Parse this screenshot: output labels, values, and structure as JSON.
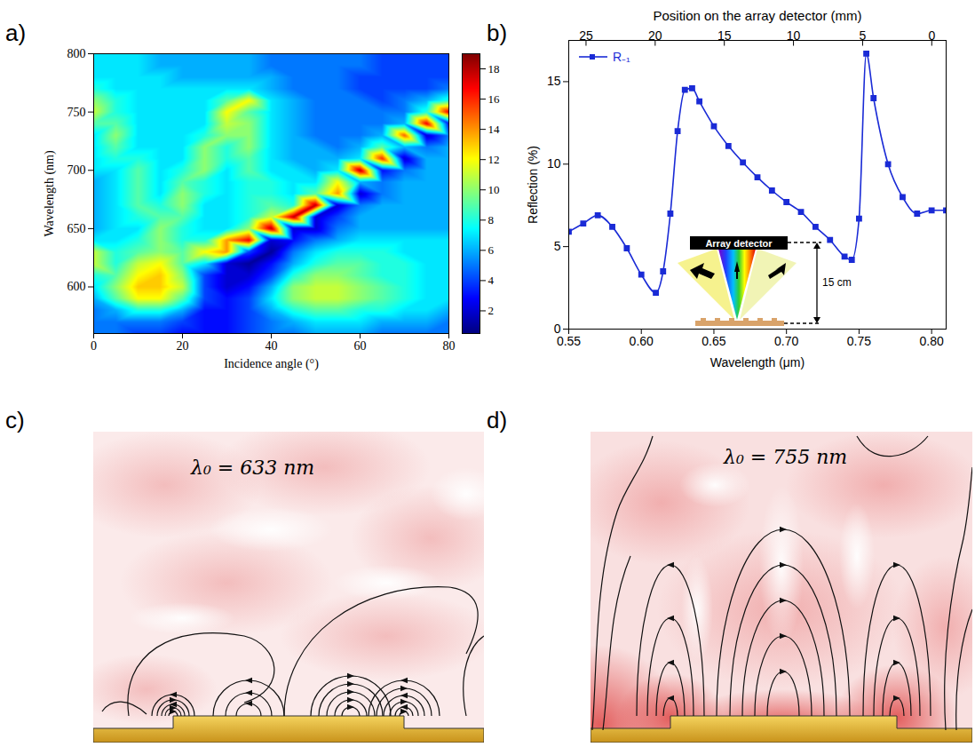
{
  "chart_data": [
    {
      "panel": "a)",
      "type": "heatmap",
      "xlabel": "Incidence angle (°)",
      "ylabel": "Wavelength (nm)",
      "xlim": [
        0,
        80
      ],
      "ylim": [
        560,
        800
      ],
      "xticks": [
        0,
        20,
        40,
        60,
        80
      ],
      "yticks": [
        600,
        650,
        700,
        750,
        800
      ],
      "x": [
        0,
        5,
        10,
        15,
        20,
        25,
        30,
        35,
        40,
        45,
        50,
        55,
        60,
        65,
        70,
        75,
        80
      ],
      "y": [
        560,
        570,
        580,
        590,
        600,
        610,
        620,
        630,
        640,
        650,
        660,
        670,
        680,
        690,
        700,
        710,
        720,
        730,
        740,
        750,
        760,
        770,
        780,
        790,
        800
      ],
      "values": [
        [
          5,
          5,
          4,
          4,
          3,
          3,
          3,
          4,
          5,
          5,
          6,
          6,
          6,
          5,
          5,
          5,
          5
        ],
        [
          5,
          5,
          5,
          5,
          4,
          3,
          3,
          4,
          5,
          6,
          7,
          7,
          7,
          6,
          6,
          6,
          5
        ],
        [
          5,
          6,
          8,
          8,
          6,
          3,
          3,
          4,
          6,
          8,
          9,
          9,
          8,
          8,
          7,
          7,
          6
        ],
        [
          6,
          9,
          12,
          12,
          9,
          4,
          3,
          4,
          7,
          10,
          11,
          11,
          10,
          9,
          8,
          7,
          7
        ],
        [
          7,
          10,
          13,
          13,
          11,
          4,
          2,
          3,
          6,
          10,
          11,
          11,
          10,
          9,
          8,
          7,
          7
        ],
        [
          8,
          9,
          12,
          13,
          10,
          4,
          2,
          2,
          4,
          8,
          10,
          10,
          9,
          8,
          8,
          7,
          7
        ],
        [
          11,
          8,
          11,
          12,
          9,
          7,
          2,
          1,
          3,
          6,
          8,
          9,
          9,
          8,
          8,
          7,
          7
        ],
        [
          11,
          8,
          9,
          10,
          9,
          12,
          14,
          4,
          1,
          5,
          7,
          8,
          8,
          8,
          7,
          7,
          7
        ],
        [
          7,
          7,
          8,
          10,
          8,
          8,
          14,
          17,
          2,
          3,
          5,
          6,
          7,
          7,
          7,
          7,
          7
        ],
        [
          6,
          7,
          7,
          10,
          8,
          7,
          7,
          10,
          18,
          2,
          2,
          5,
          6,
          6,
          6,
          6,
          6
        ],
        [
          6,
          7,
          8,
          9,
          9,
          7,
          7,
          8,
          11,
          18,
          2,
          4,
          6,
          6,
          6,
          6,
          6
        ],
        [
          6,
          7,
          9,
          8,
          10,
          7,
          7,
          8,
          9,
          8,
          18,
          2,
          5,
          6,
          6,
          6,
          6
        ],
        [
          6,
          7,
          9,
          7,
          10,
          8,
          7,
          8,
          8,
          7,
          9,
          14,
          2,
          5,
          6,
          6,
          6
        ],
        [
          6,
          7,
          9,
          7,
          9,
          8,
          7,
          8,
          8,
          7,
          7,
          12,
          6,
          5,
          6,
          6,
          6
        ],
        [
          7,
          7,
          9,
          7,
          8,
          10,
          7,
          9,
          7,
          7,
          6,
          7,
          18,
          3,
          5,
          6,
          6
        ],
        [
          7,
          8,
          8,
          7,
          7,
          10,
          8,
          9,
          7,
          6,
          6,
          6,
          7,
          16,
          2,
          6,
          6
        ],
        [
          7,
          9,
          7,
          7,
          7,
          10,
          8,
          10,
          7,
          6,
          6,
          5,
          6,
          9,
          6,
          5,
          6
        ],
        [
          7,
          10,
          7,
          7,
          7,
          8,
          10,
          10,
          7,
          6,
          5,
          5,
          5,
          6,
          15,
          2,
          5
        ],
        [
          9,
          9,
          7,
          7,
          7,
          7,
          11,
          10,
          7,
          6,
          5,
          5,
          5,
          5,
          6,
          17,
          3
        ],
        [
          11,
          8,
          7,
          7,
          7,
          7,
          12,
          9,
          7,
          6,
          5,
          5,
          5,
          5,
          5,
          8,
          17
        ],
        [
          10,
          8,
          7,
          7,
          7,
          7,
          9,
          12,
          7,
          6,
          5,
          5,
          5,
          4,
          5,
          6,
          8
        ],
        [
          8,
          7,
          7,
          7,
          7,
          7,
          7,
          7,
          6,
          5,
          5,
          5,
          4,
          4,
          4,
          4,
          5
        ],
        [
          7,
          7,
          7,
          7,
          6,
          6,
          6,
          6,
          6,
          5,
          5,
          5,
          4,
          4,
          4,
          4,
          4
        ],
        [
          7,
          7,
          7,
          6,
          6,
          6,
          6,
          6,
          5,
          5,
          5,
          5,
          5,
          4,
          4,
          4,
          4
        ],
        [
          7,
          7,
          7,
          6,
          6,
          6,
          6,
          6,
          5,
          5,
          5,
          5,
          5,
          4,
          4,
          4,
          4
        ]
      ],
      "colorbar": {
        "range": [
          0.5,
          19
        ],
        "ticks": [
          2,
          4,
          6,
          8,
          10,
          12,
          14,
          16,
          18
        ]
      }
    },
    {
      "panel": "b)",
      "type": "line",
      "xlabel": "Wavelength (μm)",
      "ylabel": "Reflection (%)",
      "x2label": "Position on the array detector (mm)",
      "xlim": [
        0.55,
        0.81
      ],
      "ylim": [
        0,
        17.5
      ],
      "xticks": [
        {
          "value": 0.55,
          "label": "0.55"
        },
        {
          "value": 0.6,
          "label": "0.60"
        },
        {
          "value": 0.65,
          "label": "0.65"
        },
        {
          "value": 0.7,
          "label": "0.70"
        },
        {
          "value": 0.75,
          "label": "0.75"
        },
        {
          "value": 0.8,
          "label": "0.80"
        }
      ],
      "yticks": [
        0,
        5,
        10,
        15
      ],
      "x2lim": [
        26.25,
        -1.04
      ],
      "x2ticks": [
        25,
        20,
        15,
        10,
        5,
        0
      ],
      "legend": "top-left",
      "x": [
        0.55,
        0.56,
        0.57,
        0.58,
        0.59,
        0.6,
        0.61,
        0.615,
        0.62,
        0.625,
        0.63,
        0.635,
        0.64,
        0.65,
        0.66,
        0.67,
        0.68,
        0.69,
        0.7,
        0.71,
        0.72,
        0.73,
        0.74,
        0.745,
        0.75,
        0.755,
        0.76,
        0.77,
        0.78,
        0.79,
        0.8,
        0.81
      ],
      "series": [
        {
          "name": "R₋₁",
          "color": "#1a2bd6",
          "marker": "square",
          "values": [
            5.9,
            6.4,
            6.9,
            6.2,
            4.9,
            3.3,
            2.2,
            3.5,
            7.0,
            12.0,
            14.5,
            14.6,
            13.8,
            12.3,
            11.1,
            10.1,
            9.2,
            8.4,
            7.7,
            7.1,
            6.2,
            5.4,
            4.4,
            4.2,
            6.7,
            16.7,
            14.0,
            10.0,
            8.0,
            7.0,
            7.2,
            7.2
          ]
        }
      ],
      "inset": {
        "detector_label": "Array detector",
        "distance_label": "15 cm"
      }
    }
  ],
  "diagrams": [
    {
      "panel": "c)",
      "label": "λ₀ = 633 nm"
    },
    {
      "panel": "d)",
      "label": "λ₀ = 755 nm"
    }
  ]
}
